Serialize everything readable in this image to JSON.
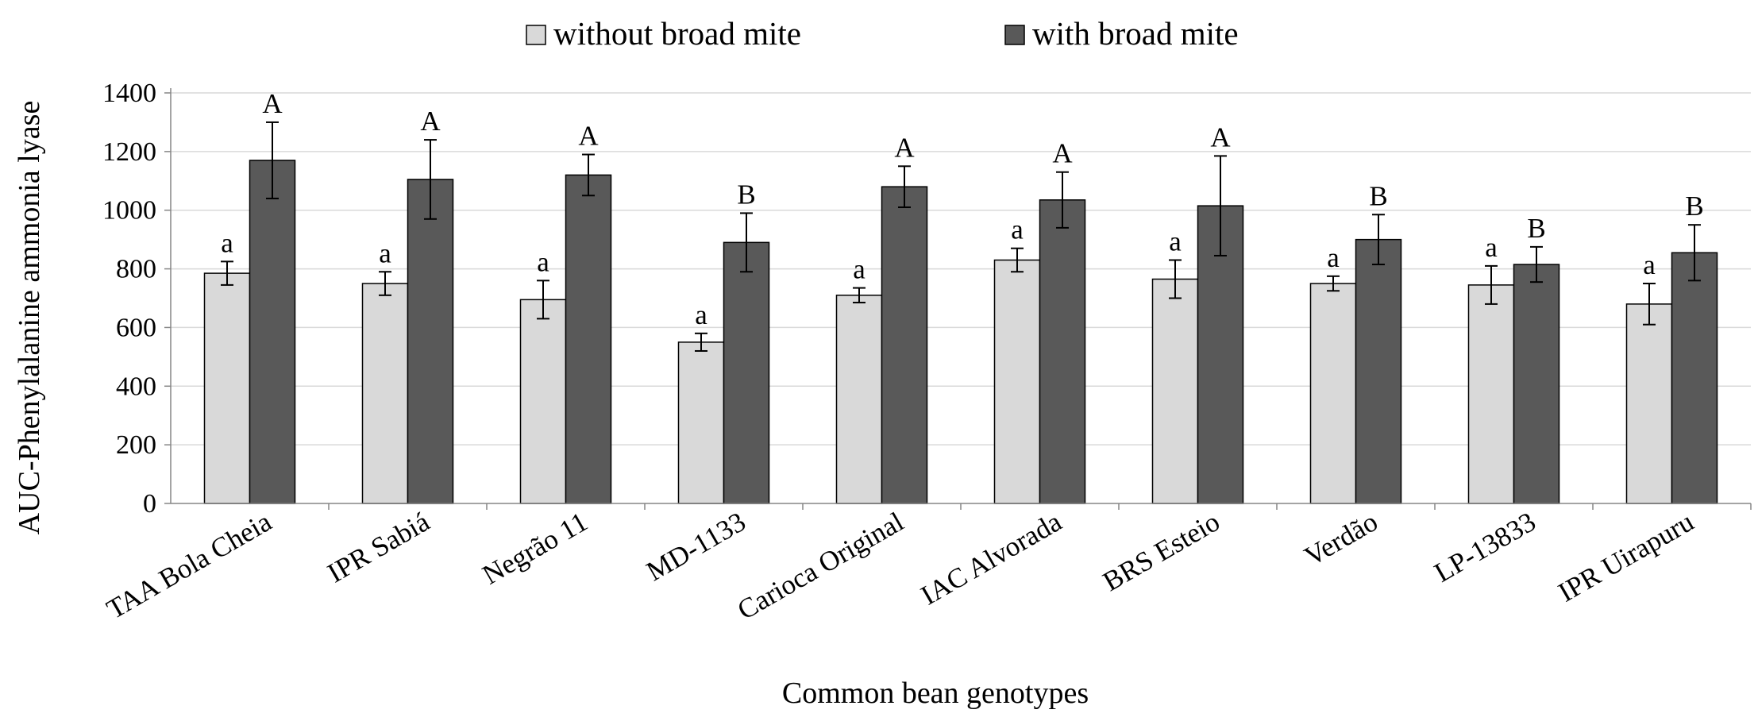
{
  "chart_data": {
    "type": "bar",
    "title": "",
    "xlabel": "Common bean genotypes",
    "ylabel": "AUC-Phenylalanine  ammonia  lyase",
    "ylim": [
      0,
      1400
    ],
    "yticks": [
      "0",
      "200",
      "400",
      "600",
      "800",
      "1000",
      "1200",
      "1400"
    ],
    "grid": true,
    "legend_position": "top",
    "categories": [
      "TAA Bola Cheia",
      "IPR Sabiá",
      "Negrão 11",
      "MD-1133",
      "Carioca Original",
      "IAC Alvorada",
      "BRS Esteio",
      "Verdão",
      "LP-13833",
      "IPR Uirapuru"
    ],
    "series": [
      {
        "name": "without broad mite",
        "color": "#d9d9d9",
        "values": [
          785,
          750,
          695,
          550,
          710,
          830,
          765,
          750,
          745,
          680
        ],
        "errors": [
          40,
          40,
          65,
          30,
          25,
          40,
          65,
          25,
          65,
          70
        ],
        "labels": [
          "a",
          "a",
          "a",
          "a",
          "a",
          "a",
          "a",
          "a",
          "a",
          "a"
        ]
      },
      {
        "name": "with broad mite",
        "color": "#595959",
        "values": [
          1170,
          1105,
          1120,
          890,
          1080,
          1035,
          1015,
          900,
          815,
          855
        ],
        "errors": [
          130,
          135,
          70,
          100,
          70,
          95,
          170,
          85,
          60,
          95
        ],
        "labels": [
          "A",
          "A",
          "A",
          "B",
          "A",
          "A",
          "A",
          "B",
          "B",
          "B"
        ]
      }
    ]
  }
}
